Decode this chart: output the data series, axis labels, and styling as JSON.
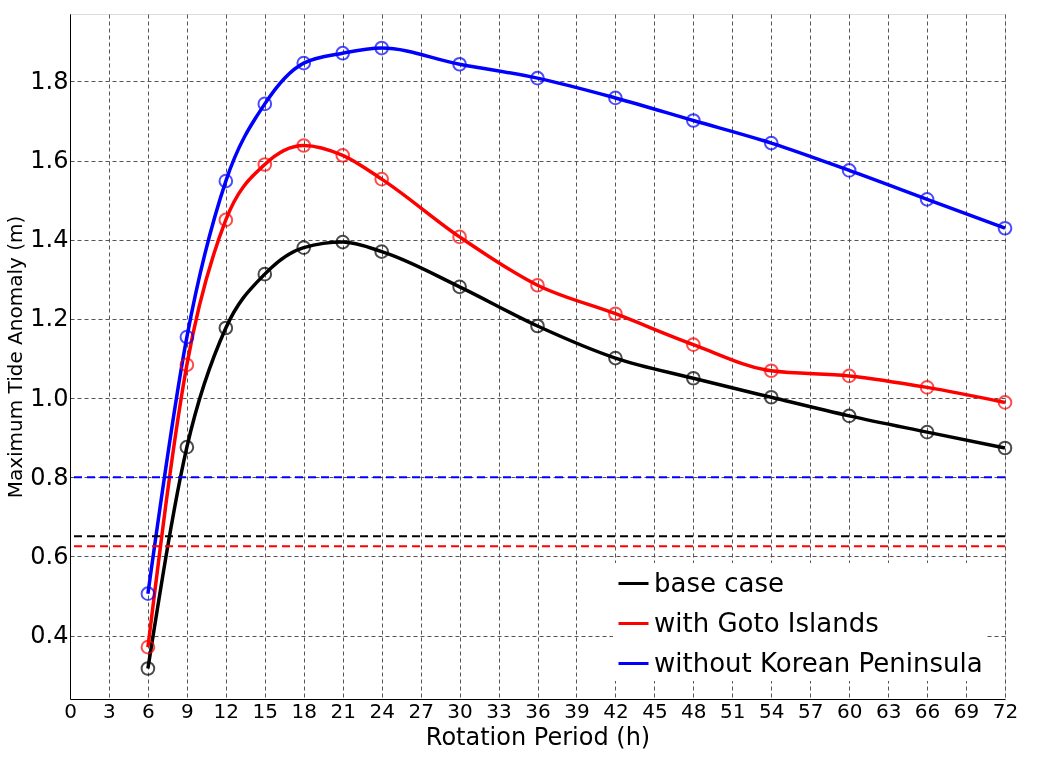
{
  "chart_data": {
    "type": "line",
    "xlabel": "Rotation Period (h)",
    "ylabel": "Maximum Tide Anomaly (m)",
    "x": [
      6,
      9,
      12,
      15,
      18,
      21,
      24,
      30,
      36,
      42,
      48,
      54,
      60,
      66,
      72
    ],
    "series": [
      {
        "name": "base case",
        "color": "#000000",
        "values": [
          0.317,
          0.876,
          1.177,
          1.313,
          1.38,
          1.394,
          1.37,
          1.281,
          1.182,
          1.101,
          1.05,
          1.002,
          0.955,
          0.914,
          0.874
        ]
      },
      {
        "name": "with Goto Islands",
        "color": "#ff0000",
        "values": [
          0.371,
          1.084,
          1.45,
          1.59,
          1.638,
          1.613,
          1.553,
          1.407,
          1.285,
          1.213,
          1.135,
          1.069,
          1.056,
          1.027,
          0.989
        ]
      },
      {
        "name": "without Korean Peninsula",
        "color": "#0000ff",
        "values": [
          0.506,
          1.154,
          1.548,
          1.743,
          1.846,
          1.871,
          1.884,
          1.843,
          1.808,
          1.758,
          1.701,
          1.644,
          1.575,
          1.502,
          1.429
        ]
      }
    ],
    "xlim": [
      0,
      72
    ],
    "xticks": [
      0,
      3,
      6,
      9,
      12,
      15,
      18,
      21,
      24,
      27,
      30,
      33,
      36,
      39,
      42,
      45,
      48,
      51,
      54,
      57,
      60,
      63,
      66,
      69,
      72
    ],
    "ylim": [
      0.24,
      1.97
    ],
    "yticks": [
      {
        "value": 0.4,
        "label": "0.4"
      },
      {
        "value": 0.6,
        "label": "0.6"
      },
      {
        "value": 0.8,
        "label": "0.8"
      },
      {
        "value": 1.0,
        "label": "1.0"
      },
      {
        "value": 1.2,
        "label": "1.2"
      },
      {
        "value": 1.4,
        "label": "1.4"
      },
      {
        "value": 1.6,
        "label": "1.6"
      },
      {
        "value": 1.8,
        "label": "1.8"
      }
    ],
    "ref_lines": [
      {
        "axis": "y",
        "value": 0.651,
        "color": "#000000",
        "line_style": "dashed"
      },
      {
        "axis": "y",
        "value": 0.626,
        "color": "#ff0000",
        "line_style": "dashed"
      },
      {
        "axis": "y",
        "value": 0.8,
        "color": "#0000ff",
        "line_style": "dashed"
      }
    ],
    "grid": true,
    "legend": "bottom right",
    "marker": "circle",
    "line_style": "solid"
  }
}
